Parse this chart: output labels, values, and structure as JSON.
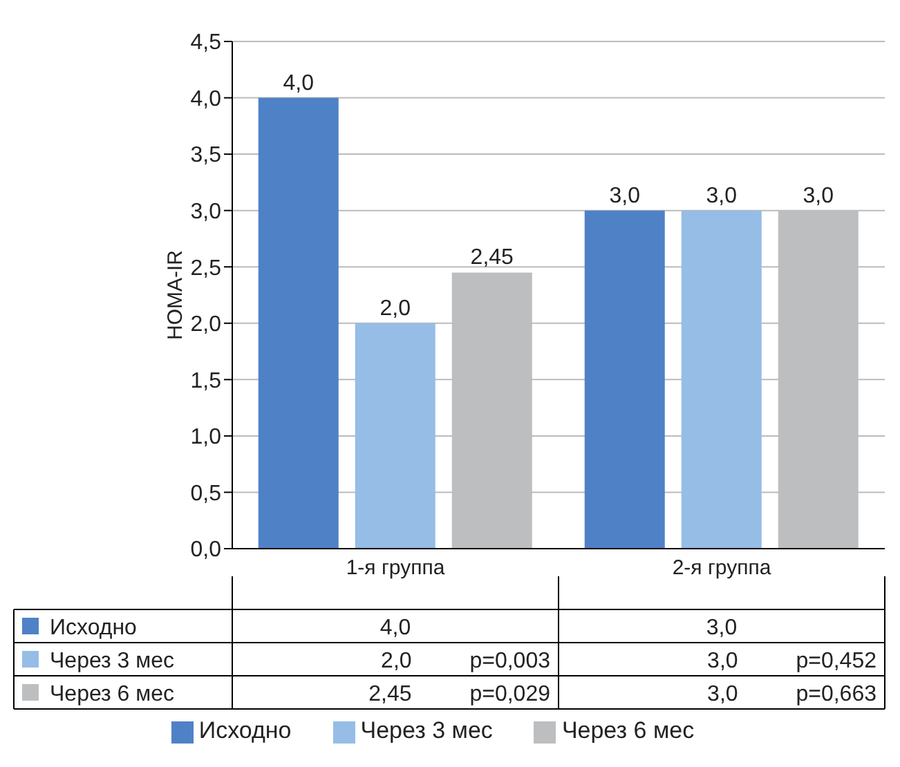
{
  "chart_data": {
    "type": "bar",
    "ylabel": "HOMA-IR",
    "categories": [
      "1-я группа",
      "2-я группа"
    ],
    "series": [
      {
        "name": "Исходно",
        "color": "#4f81c7",
        "values": [
          4.0,
          3.0
        ],
        "value_labels": [
          "4,0",
          "3,0"
        ]
      },
      {
        "name": "Через 3 мес",
        "color": "#95bde6",
        "values": [
          2.0,
          3.0
        ],
        "value_labels": [
          "2,0",
          "3,0"
        ]
      },
      {
        "name": "Через 6 мес",
        "color": "#bcbec0",
        "values": [
          2.45,
          3.0
        ],
        "value_labels": [
          "2,45",
          "3,0"
        ]
      }
    ],
    "annotations": [
      "p=0,003",
      "p=0,452",
      "p=0,029",
      "p=0,663"
    ],
    "ylim": [
      0,
      4.5
    ],
    "yticks": [
      {
        "value": 0,
        "label": "0,0"
      },
      {
        "value": 0.5,
        "label": "0,5"
      },
      {
        "value": 1,
        "label": "1,0"
      },
      {
        "value": 1.5,
        "label": "1,5"
      },
      {
        "value": 2,
        "label": "2,0"
      },
      {
        "value": 2.5,
        "label": "2,5"
      },
      {
        "value": 3,
        "label": "3,0"
      },
      {
        "value": 3.5,
        "label": "3,5"
      },
      {
        "value": 4,
        "label": "4,0"
      },
      {
        "value": 4.5,
        "label": "4,5"
      }
    ],
    "grid": "y",
    "legend": "bottom"
  }
}
